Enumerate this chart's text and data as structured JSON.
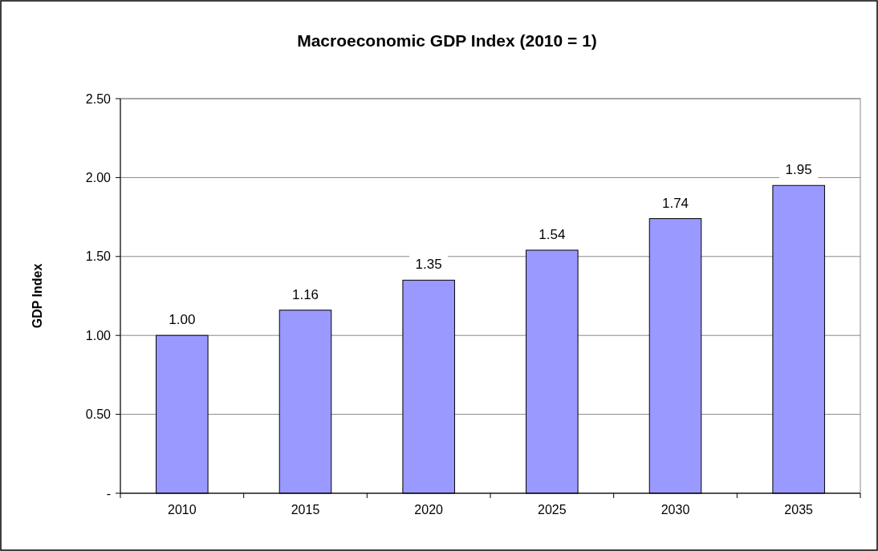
{
  "chart_data": {
    "type": "bar",
    "title": "Macroeconomic GDP Index (2010 = 1)",
    "ylabel": "GDP Index",
    "categories": [
      "2010",
      "2015",
      "2020",
      "2025",
      "2030",
      "2035"
    ],
    "values": [
      1.0,
      1.16,
      1.35,
      1.54,
      1.74,
      1.95
    ],
    "color": "#9999ff",
    "value_labels": [
      "1.00",
      "1.16",
      "1.35",
      "1.54",
      "1.74",
      "1.95"
    ],
    "ylim": [
      0,
      2.5
    ],
    "yticks": [
      {
        "value": 0,
        "label": "-"
      },
      {
        "value": 0.5,
        "label": "0.50"
      },
      {
        "value": 1,
        "label": "1.00"
      },
      {
        "value": 1.5,
        "label": "1.50"
      },
      {
        "value": 2,
        "label": "2.00"
      },
      {
        "value": 2.5,
        "label": "2.50"
      }
    ],
    "grid": "y"
  }
}
